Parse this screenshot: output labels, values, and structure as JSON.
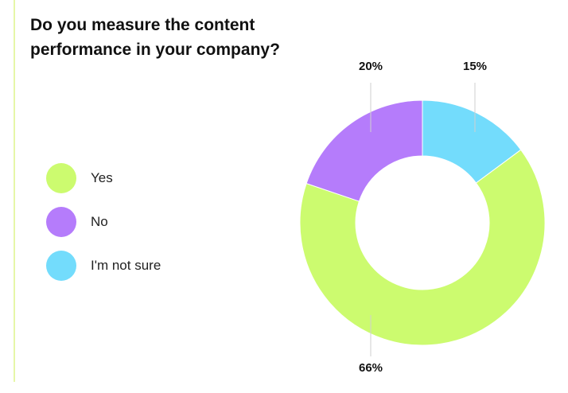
{
  "title": "Do you measure the content performance in your company?",
  "legend": [
    {
      "label": "Yes",
      "color": "#ccfb6f"
    },
    {
      "label": "No",
      "color": "#b57cfb"
    },
    {
      "label": "I'm not sure",
      "color": "#73dcfc"
    }
  ],
  "chart_data": {
    "type": "pie",
    "categories": [
      "Yes",
      "No",
      "I'm not sure"
    ],
    "values": [
      66,
      20,
      15
    ],
    "labels": [
      "66%",
      "20%",
      "15%"
    ],
    "colors": [
      "#ccfb6f",
      "#b57cfb",
      "#73dcfc"
    ],
    "donut": true,
    "legend_position": "left"
  }
}
